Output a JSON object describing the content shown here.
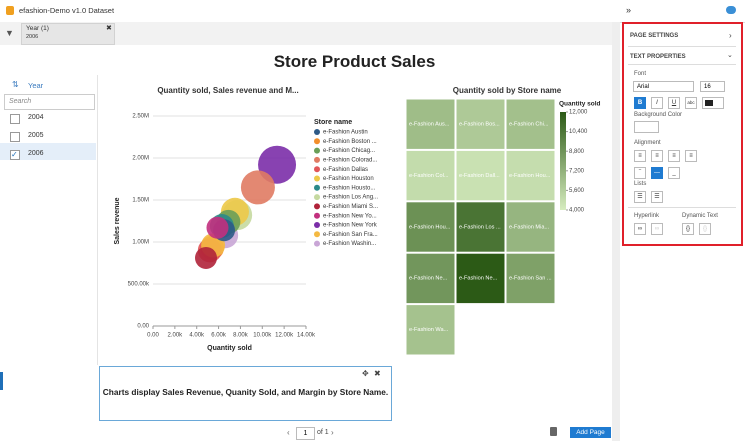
{
  "header": {
    "title": "efashion-Demo v1.0 Dataset"
  },
  "filter": {
    "label": "Year (1)",
    "value": "2006"
  },
  "year_panel": {
    "title": "Year",
    "search": "Search",
    "items": [
      "2004",
      "2005",
      "2006"
    ]
  },
  "page_title": "Store Product Sales",
  "chart_data": [
    {
      "type": "bubble",
      "title": "Quantity sold, Sales revenue and M...",
      "x_label": "Quantity sold",
      "y_label": "Sales revenue",
      "legend_title": "Store name",
      "xlim": [
        0,
        14000
      ],
      "xticks": [
        {
          "value": 0,
          "label": "0.00"
        },
        {
          "value": 2000,
          "label": "2.00k"
        },
        {
          "value": 4000,
          "label": "4.00k"
        },
        {
          "value": 6000,
          "label": "6.00k"
        },
        {
          "value": 8000,
          "label": "8.00k"
        },
        {
          "value": 10000,
          "label": "10.00k"
        },
        {
          "value": 12000,
          "label": "12.00k"
        },
        {
          "value": 14000,
          "label": "14.00k"
        }
      ],
      "ylim": [
        0,
        2500000
      ],
      "yticks": [
        {
          "value": 0,
          "label": "0.00"
        },
        {
          "value": 500000,
          "label": "500.00k"
        },
        {
          "value": 1000000,
          "label": "1.00M"
        },
        {
          "value": 1500000,
          "label": "1.50M"
        },
        {
          "value": 2000000,
          "label": "2.00M"
        },
        {
          "value": 2500000,
          "label": "2.50M"
        }
      ],
      "grid": true,
      "series": [
        {
          "name": "e-Fashion Austin",
          "color": "#2e5a87",
          "x": 6500,
          "y": 1140000,
          "size": 11
        },
        {
          "name": "e-Fashion Boston ...",
          "color": "#f28e2b",
          "x": 5400,
          "y": 930000,
          "size": 12
        },
        {
          "name": "e-Fashion Chicag...",
          "color": "#6a9f58",
          "x": 6900,
          "y": 1240000,
          "size": 12
        },
        {
          "name": "e-Fashion Colorad...",
          "color": "#e07b63",
          "x": 9600,
          "y": 1650000,
          "size": 17
        },
        {
          "name": "e-Fashion Dallas",
          "color": "#e15759",
          "x": 5200,
          "y": 900000,
          "size": 12
        },
        {
          "name": "e-Fashion Houston",
          "color": "#edc948",
          "x": 7500,
          "y": 1360000,
          "size": 14
        },
        {
          "name": "e-Fashion Housto...",
          "color": "#2b8a8a",
          "x": 6300,
          "y": 1190000,
          "size": 12
        },
        {
          "name": "e-Fashion Los Ang...",
          "color": "#c5d9a0",
          "x": 7700,
          "y": 1320000,
          "size": 15
        },
        {
          "name": "e-Fashion Miami S...",
          "color": "#b0233a",
          "x": 4850,
          "y": 810000,
          "size": 11
        },
        {
          "name": "e-Fashion New Yo...",
          "color": "#c2307e",
          "x": 5900,
          "y": 1170000,
          "size": 11
        },
        {
          "name": "e-Fashion New York",
          "color": "#7b2ea8",
          "x": 11350,
          "y": 1920000,
          "size": 19
        },
        {
          "name": "e-Fashion San Fra...",
          "color": "#f4b942",
          "x": 5500,
          "y": 960000,
          "size": 12
        },
        {
          "name": "e-Fashion Washin...",
          "color": "#c9a6d6",
          "x": 6600,
          "y": 1080000,
          "size": 13
        }
      ]
    },
    {
      "type": "treemap",
      "title": "Quantity sold by Store name",
      "legend_title": "Quantity sold",
      "categories": [
        "e-Fashion Aus...",
        "e-Fashion Bos...",
        "e-Fashion Chi...",
        "e-Fashion Col...",
        "e-Fashion Dall...",
        "e-Fashion Hou...",
        "e-Fashion Hou...",
        "e-Fashion Los ...",
        "e-Fashion Mia...",
        "e-Fashion Ne...",
        "e-Fashion Ne...",
        "e-Fashion San ...",
        "e-Fashion Wa..."
      ],
      "values": [
        6600,
        5900,
        6400,
        4900,
        4600,
        4800,
        9000,
        10600,
        7000,
        8700,
        12000,
        8100,
        6300
      ],
      "colors": [
        "#d6ecbf",
        "#2c5a16"
      ],
      "clim": [
        4000,
        12000
      ],
      "cticks": [
        {
          "value": 4000,
          "label": "4,000"
        },
        {
          "value": 5600,
          "label": "5,600"
        },
        {
          "value": 7200,
          "label": "7,200"
        },
        {
          "value": 8800,
          "label": "8,800"
        },
        {
          "value": 10400,
          "label": "10,400"
        },
        {
          "value": 12000,
          "label": "12,000"
        }
      ]
    }
  ],
  "text_box": "Charts display Sales Revenue, Quanity Sold, and Margin by Store Name.",
  "footer": {
    "page": "1",
    "of": "of 1",
    "add": "Add Page"
  },
  "panel": {
    "page_settings": "PAGE SETTINGS",
    "text_properties": "TEXT PROPERTIES",
    "font": "Font",
    "font_name": "Arial",
    "font_size": "16",
    "bold": "B",
    "italic": "I",
    "underline": "U",
    "strike": "abc",
    "background": "Background Color",
    "alignment": "Alignment",
    "lists": "Lists",
    "hyperlink": "Hyperlink",
    "dynamic_text": "Dynamic Text"
  }
}
